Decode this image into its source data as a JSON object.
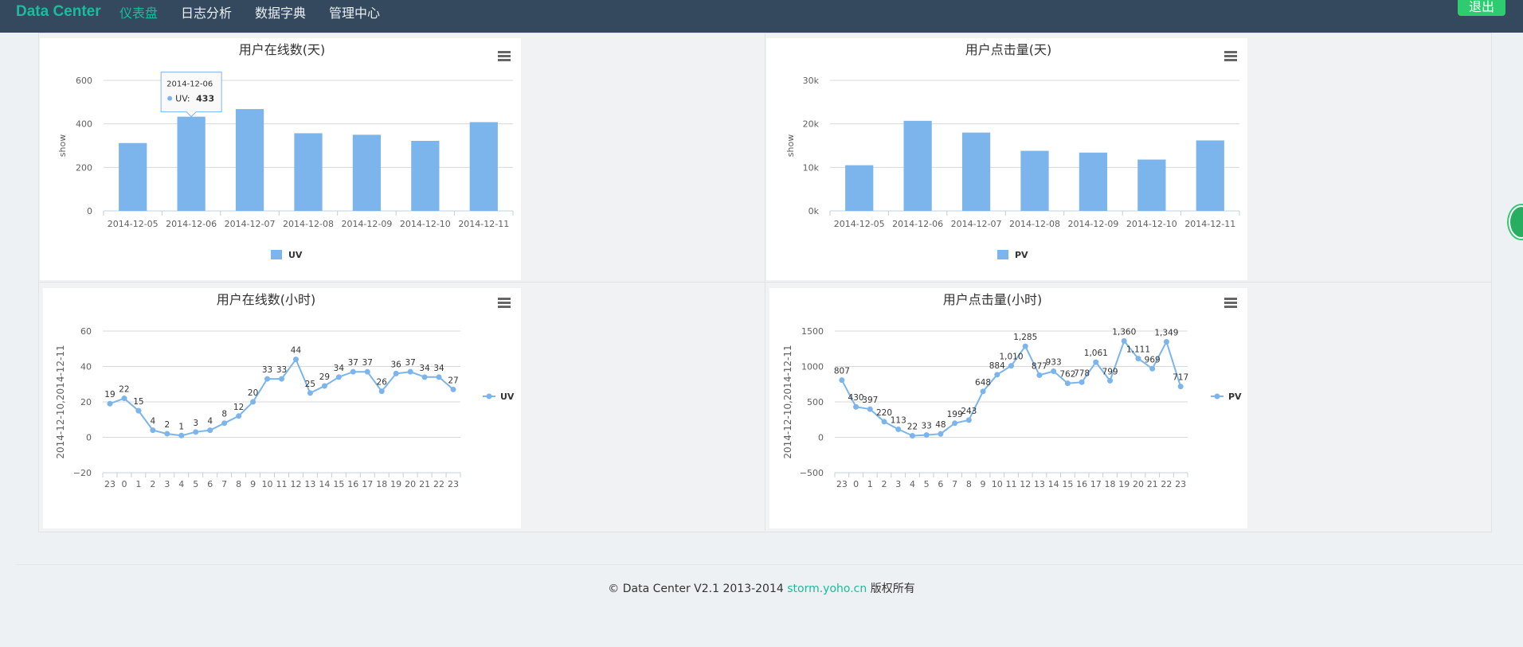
{
  "header": {
    "brand": "Data Center",
    "nav": [
      {
        "label": "仪表盘",
        "active": true
      },
      {
        "label": "日志分析",
        "active": false
      },
      {
        "label": "数据字典",
        "active": false
      },
      {
        "label": "管理中心",
        "active": false
      }
    ],
    "logout_label": "退出"
  },
  "footer": {
    "copyright": "© Data Center V2.1 2013-2014",
    "link": "storm.yoho.cn",
    "suffix": "版权所有"
  },
  "colors": {
    "accent": "#1abc9c",
    "series": "#7cb5ec",
    "header_bg": "#34495e",
    "logout_bg": "#2ecc71"
  },
  "chart_data": [
    {
      "type": "bar",
      "title": "用户在线数(天)",
      "ylabel": "show",
      "ylim": [
        0,
        600
      ],
      "yticks": [
        "0",
        "200",
        "400",
        "600"
      ],
      "categories": [
        "2014-12-05",
        "2014-12-06",
        "2014-12-07",
        "2014-12-08",
        "2014-12-09",
        "2014-12-10",
        "2014-12-11"
      ],
      "series": [
        {
          "name": "UV",
          "values": [
            312,
            433,
            468,
            357,
            350,
            322,
            408
          ]
        }
      ],
      "legend": "bottom-center",
      "tooltip": {
        "date": "2014-12-06",
        "label": "UV",
        "value": "433"
      }
    },
    {
      "type": "bar",
      "title": "用户点击量(天)",
      "ylabel": "show",
      "ylim": [
        0,
        30000
      ],
      "yticks": [
        "0k",
        "10k",
        "20k",
        "30k"
      ],
      "categories": [
        "2014-12-05",
        "2014-12-06",
        "2014-12-07",
        "2014-12-08",
        "2014-12-09",
        "2014-12-10",
        "2014-12-11"
      ],
      "series": [
        {
          "name": "PV",
          "values": [
            10500,
            20700,
            18000,
            13800,
            13400,
            11800,
            16200
          ]
        }
      ],
      "legend": "bottom-center"
    },
    {
      "type": "line",
      "title": "用户在线数(小时)",
      "ylabel": "2014-12-10,2014-12-11",
      "ylim": [
        -20,
        60
      ],
      "yticks": [
        "−20",
        "0",
        "20",
        "40",
        "60"
      ],
      "categories": [
        "23",
        "0",
        "1",
        "2",
        "3",
        "4",
        "5",
        "6",
        "7",
        "8",
        "9",
        "10",
        "11",
        "12",
        "13",
        "14",
        "15",
        "16",
        "17",
        "18",
        "19",
        "20",
        "21",
        "22",
        "23"
      ],
      "series": [
        {
          "name": "UV",
          "values": [
            19,
            22,
            15,
            4,
            2,
            1,
            3,
            4,
            8,
            12,
            20,
            33,
            33,
            44,
            25,
            29,
            34,
            37,
            37,
            26,
            36,
            37,
            34,
            34,
            27
          ]
        }
      ],
      "data_labels": [
        "19",
        "22",
        "15",
        "4",
        "2",
        "1",
        "3",
        "4",
        "8",
        "12",
        "20",
        "33",
        "33",
        "44",
        "25",
        "29",
        "34",
        "37",
        "37",
        "26",
        "36",
        "37",
        "34",
        "34",
        "27"
      ],
      "legend": "right-center"
    },
    {
      "type": "line",
      "title": "用户点击量(小时)",
      "ylabel": "2014-12-10,2014-12-11",
      "ylim": [
        -500,
        1500
      ],
      "yticks": [
        "−500",
        "0",
        "500",
        "1000",
        "1500"
      ],
      "categories": [
        "23",
        "0",
        "1",
        "2",
        "3",
        "4",
        "5",
        "6",
        "7",
        "8",
        "9",
        "10",
        "11",
        "12",
        "13",
        "14",
        "15",
        "16",
        "17",
        "18",
        "19",
        "20",
        "21",
        "22",
        "23"
      ],
      "series": [
        {
          "name": "PV",
          "values": [
            807,
            430,
            397,
            220,
            113,
            22,
            33,
            48,
            199,
            243,
            648,
            884,
            1010,
            1285,
            877,
            933,
            762,
            778,
            1061,
            799,
            1360,
            1111,
            969,
            1349,
            717
          ]
        }
      ],
      "data_labels": [
        "807",
        "430",
        "397",
        "220",
        "113",
        "22",
        "33",
        "48",
        "199",
        "243",
        "648",
        "884",
        "1,010",
        "1,285",
        "877",
        "933",
        "762",
        "778",
        "1,061",
        "799",
        "1,360",
        "1,111",
        "969",
        "1,349",
        "717"
      ],
      "legend": "right-center"
    }
  ]
}
